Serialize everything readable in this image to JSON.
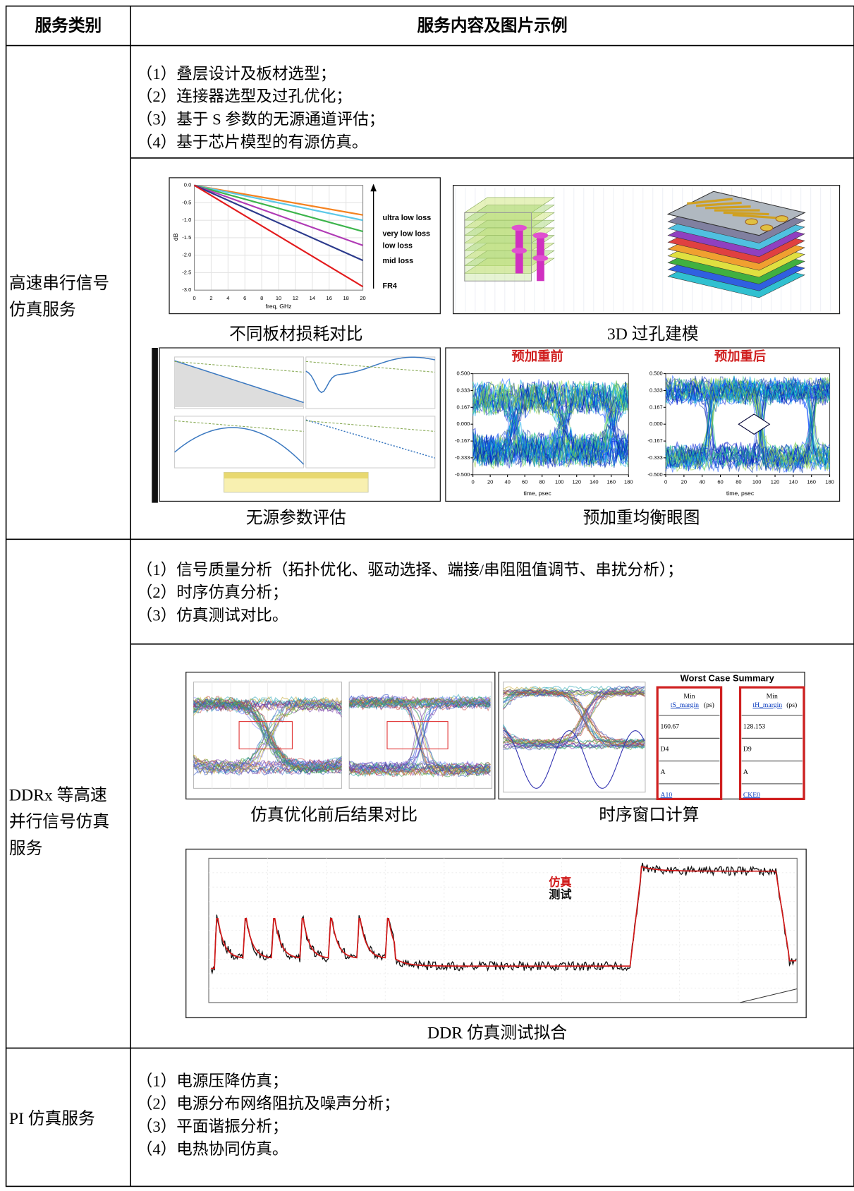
{
  "table": {
    "headers": [
      "服务类别",
      "服务内容及图片示例"
    ],
    "rows": [
      {
        "category": [
          "高速串行信号",
          "仿真服务"
        ],
        "items": [
          "（1）叠层设计及板材选型；",
          "（2）连接器选型及过孔优化；",
          "（3）基于 S 参数的无源通道评估；",
          "（4）基于芯片模型的有源仿真。"
        ],
        "figures": [
          {
            "caption": "不同板材损耗对比",
            "type": "line",
            "ylabel": "dB",
            "xlabel": "freq, GHz",
            "x": [
              0,
              20
            ],
            "xlim": [
              0,
              20
            ],
            "ylim": [
              -3,
              0
            ],
            "xticks": [
              0,
              2,
              4,
              6,
              8,
              10,
              12,
              14,
              16,
              18,
              20
            ],
            "yticks": [
              {
                "value": 0,
                "label": "0.0"
              },
              -0.5,
              {
                "value": -1,
                "label": "-1.0"
              },
              -1.5,
              {
                "value": -2,
                "label": "-2.0"
              },
              -2.5,
              {
                "value": -3,
                "label": "-3.0"
              }
            ],
            "annotations": [
              "ultra low loss",
              "very low loss",
              "low loss",
              "mid loss",
              "FR4"
            ],
            "series": [
              {
                "color": "#f5821f",
                "values": [
                  0,
                  -0.85
                ]
              },
              {
                "color": "#5bc8e8",
                "values": [
                  0,
                  -1.0
                ]
              },
              {
                "color": "#3cb44b",
                "values": [
                  0,
                  -1.32
                ]
              },
              {
                "color": "#b03ab5",
                "values": [
                  0,
                  -1.72
                ]
              },
              {
                "color": "#2b3a8c",
                "values": [
                  0,
                  -2.15
                ]
              },
              {
                "color": "#e31a1c",
                "values": [
                  0,
                  -2.9
                ]
              }
            ]
          },
          {
            "caption": "3D 过孔建模"
          },
          {
            "caption": "无源参数评估"
          },
          {
            "caption": "预加重均衡眼图",
            "panels": [
              {
                "title": "预加重前"
              },
              {
                "title": "预加重后"
              }
            ],
            "xlabel": "time, psec",
            "xlim": [
              0,
              180
            ],
            "ylim": [
              -0.5,
              0.5
            ],
            "xticks": [
              0,
              20,
              40,
              60,
              80,
              100,
              120,
              140,
              160,
              180
            ],
            "yticks": [
              {
                "value": 0.5,
                "label": "0.500"
              },
              {
                "value": 0.333,
                "label": "0.333"
              },
              {
                "value": 0.167,
                "label": "0.167"
              },
              {
                "value": 0,
                "label": "0.000"
              },
              {
                "value": -0.167,
                "label": "-0.167"
              },
              {
                "value": -0.333,
                "label": "-0.333"
              },
              {
                "value": -0.5,
                "label": "-0.500"
              }
            ]
          }
        ]
      },
      {
        "category": [
          "DDRx 等高速",
          "并行信号仿真",
          "服务"
        ],
        "items": [
          "（1）信号质量分析（拓扑优化、驱动选择、端接/串阻阻值调节、串扰分析）；",
          "（2）时序仿真分析；",
          "（3）仿真测试对比。"
        ],
        "figures": [
          {
            "caption": "仿真优化前后结果对比"
          },
          {
            "caption": "时序窗口计算",
            "summary": {
              "title": "Worst Case Summary",
              "columns": [
                {
                  "header": [
                    "Min",
                    "tS_margin",
                    "(ps)"
                  ],
                  "cells": [
                    "160.67",
                    "D4",
                    "A",
                    "A10"
                  ]
                },
                {
                  "header": [
                    "Min",
                    "tH_margin",
                    "(ps)"
                  ],
                  "cells": [
                    "128.153",
                    "D9",
                    "A",
                    "CKE0"
                  ]
                }
              ]
            }
          },
          {
            "caption": "DDR 仿真测试拟合",
            "legend": [
              "仿真",
              "测试"
            ]
          }
        ]
      },
      {
        "category": [
          "PI 仿真服务"
        ],
        "items": [
          "（1）电源压降仿真；",
          "（2）电源分布网络阻抗及噪声分析；",
          "（3）平面谐振分析；",
          "（4）电热协同仿真。"
        ]
      }
    ]
  }
}
